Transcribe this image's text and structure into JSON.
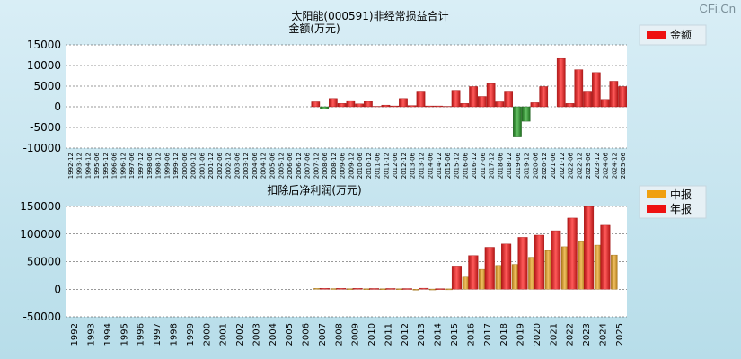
{
  "watermark": "CFi.Cn",
  "chart_data": [
    {
      "type": "bar",
      "title": "太阳能(000591)非经常损益合计",
      "ylabel": "金额(万元)",
      "ylim": [
        -10000,
        15000
      ],
      "yticks": [
        "15000",
        "10000",
        "5000",
        "0",
        "-5000",
        "-10000"
      ],
      "categories": [
        "1992-12",
        "1993-12",
        "1994-12",
        "1995-06",
        "1995-12",
        "1996-06",
        "1996-12",
        "1997-06",
        "1997-12",
        "1998-06",
        "1998-12",
        "1999-06",
        "1999-12",
        "2000-06",
        "2000-12",
        "2001-06",
        "2001-12",
        "2002-06",
        "2002-12",
        "2003-06",
        "2003-12",
        "2004-06",
        "2004-12",
        "2005-06",
        "2005-12",
        "2006-06",
        "2006-12",
        "2007-06",
        "2007-12",
        "2008-06",
        "2008-12",
        "2009-06",
        "2009-12",
        "2010-06",
        "2010-12",
        "2011-06",
        "2011-12",
        "2012-06",
        "2012-12",
        "2013-06",
        "2013-12",
        "2014-06",
        "2014-12",
        "2015-06",
        "2015-12",
        "2016-06",
        "2016-12",
        "2017-06",
        "2017-12",
        "2018-06",
        "2018-12",
        "2019-06",
        "2019-12",
        "2020-06",
        "2020-12",
        "2021-06",
        "2021-12",
        "2022-06",
        "2022-12",
        "2023-06",
        "2023-12",
        "2024-06",
        "2024-12",
        "2025-06"
      ],
      "series": [
        {
          "name": "金额",
          "values": [
            0,
            0,
            0,
            0,
            0,
            0,
            0,
            0,
            0,
            0,
            0,
            0,
            0,
            0,
            0,
            0,
            0,
            0,
            0,
            0,
            0,
            0,
            0,
            0,
            0,
            0,
            0,
            0,
            1200,
            -500,
            2000,
            800,
            1500,
            700,
            1300,
            100,
            400,
            200,
            2000,
            300,
            3800,
            200,
            200,
            100,
            4000,
            800,
            4900,
            2500,
            5600,
            1200,
            3800,
            -7300,
            -3500,
            1000,
            4900,
            0,
            11700,
            800,
            9000,
            3800,
            8300,
            1800,
            6200,
            4900
          ]
        }
      ],
      "legend": "top-right"
    },
    {
      "type": "bar",
      "title": "扣除后净利润(万元)",
      "ylim": [
        -50000,
        150000
      ],
      "yticks": [
        "150000",
        "100000",
        "50000",
        "0",
        "-50000"
      ],
      "categories": [
        "1992",
        "1993",
        "1994",
        "1995",
        "1996",
        "1997",
        "1998",
        "1999",
        "2000",
        "2001",
        "2002",
        "2003",
        "2004",
        "2005",
        "2006",
        "2007",
        "2008",
        "2009",
        "2010",
        "2011",
        "2012",
        "2013",
        "2014",
        "2015",
        "2016",
        "2017",
        "2018",
        "2019",
        "2020",
        "2021",
        "2022",
        "2023",
        "2024",
        "2025"
      ],
      "series": [
        {
          "name": "中报",
          "values": [
            null,
            null,
            null,
            null,
            null,
            null,
            null,
            null,
            null,
            null,
            null,
            null,
            null,
            null,
            null,
            1500,
            1200,
            1000,
            900,
            800,
            800,
            -500,
            300,
            600,
            22000,
            36000,
            43000,
            45000,
            58000,
            70000,
            77000,
            86000,
            80000,
            62000
          ]
        },
        {
          "name": "年报",
          "values": [
            null,
            null,
            null,
            null,
            null,
            null,
            null,
            null,
            null,
            null,
            null,
            null,
            null,
            null,
            null,
            1500,
            1500,
            1500,
            1300,
            1300,
            1200,
            1800,
            1000,
            42000,
            61000,
            76000,
            82000,
            94000,
            98000,
            106000,
            129000,
            150000,
            116000,
            null
          ]
        }
      ],
      "legend": "top-right"
    }
  ]
}
